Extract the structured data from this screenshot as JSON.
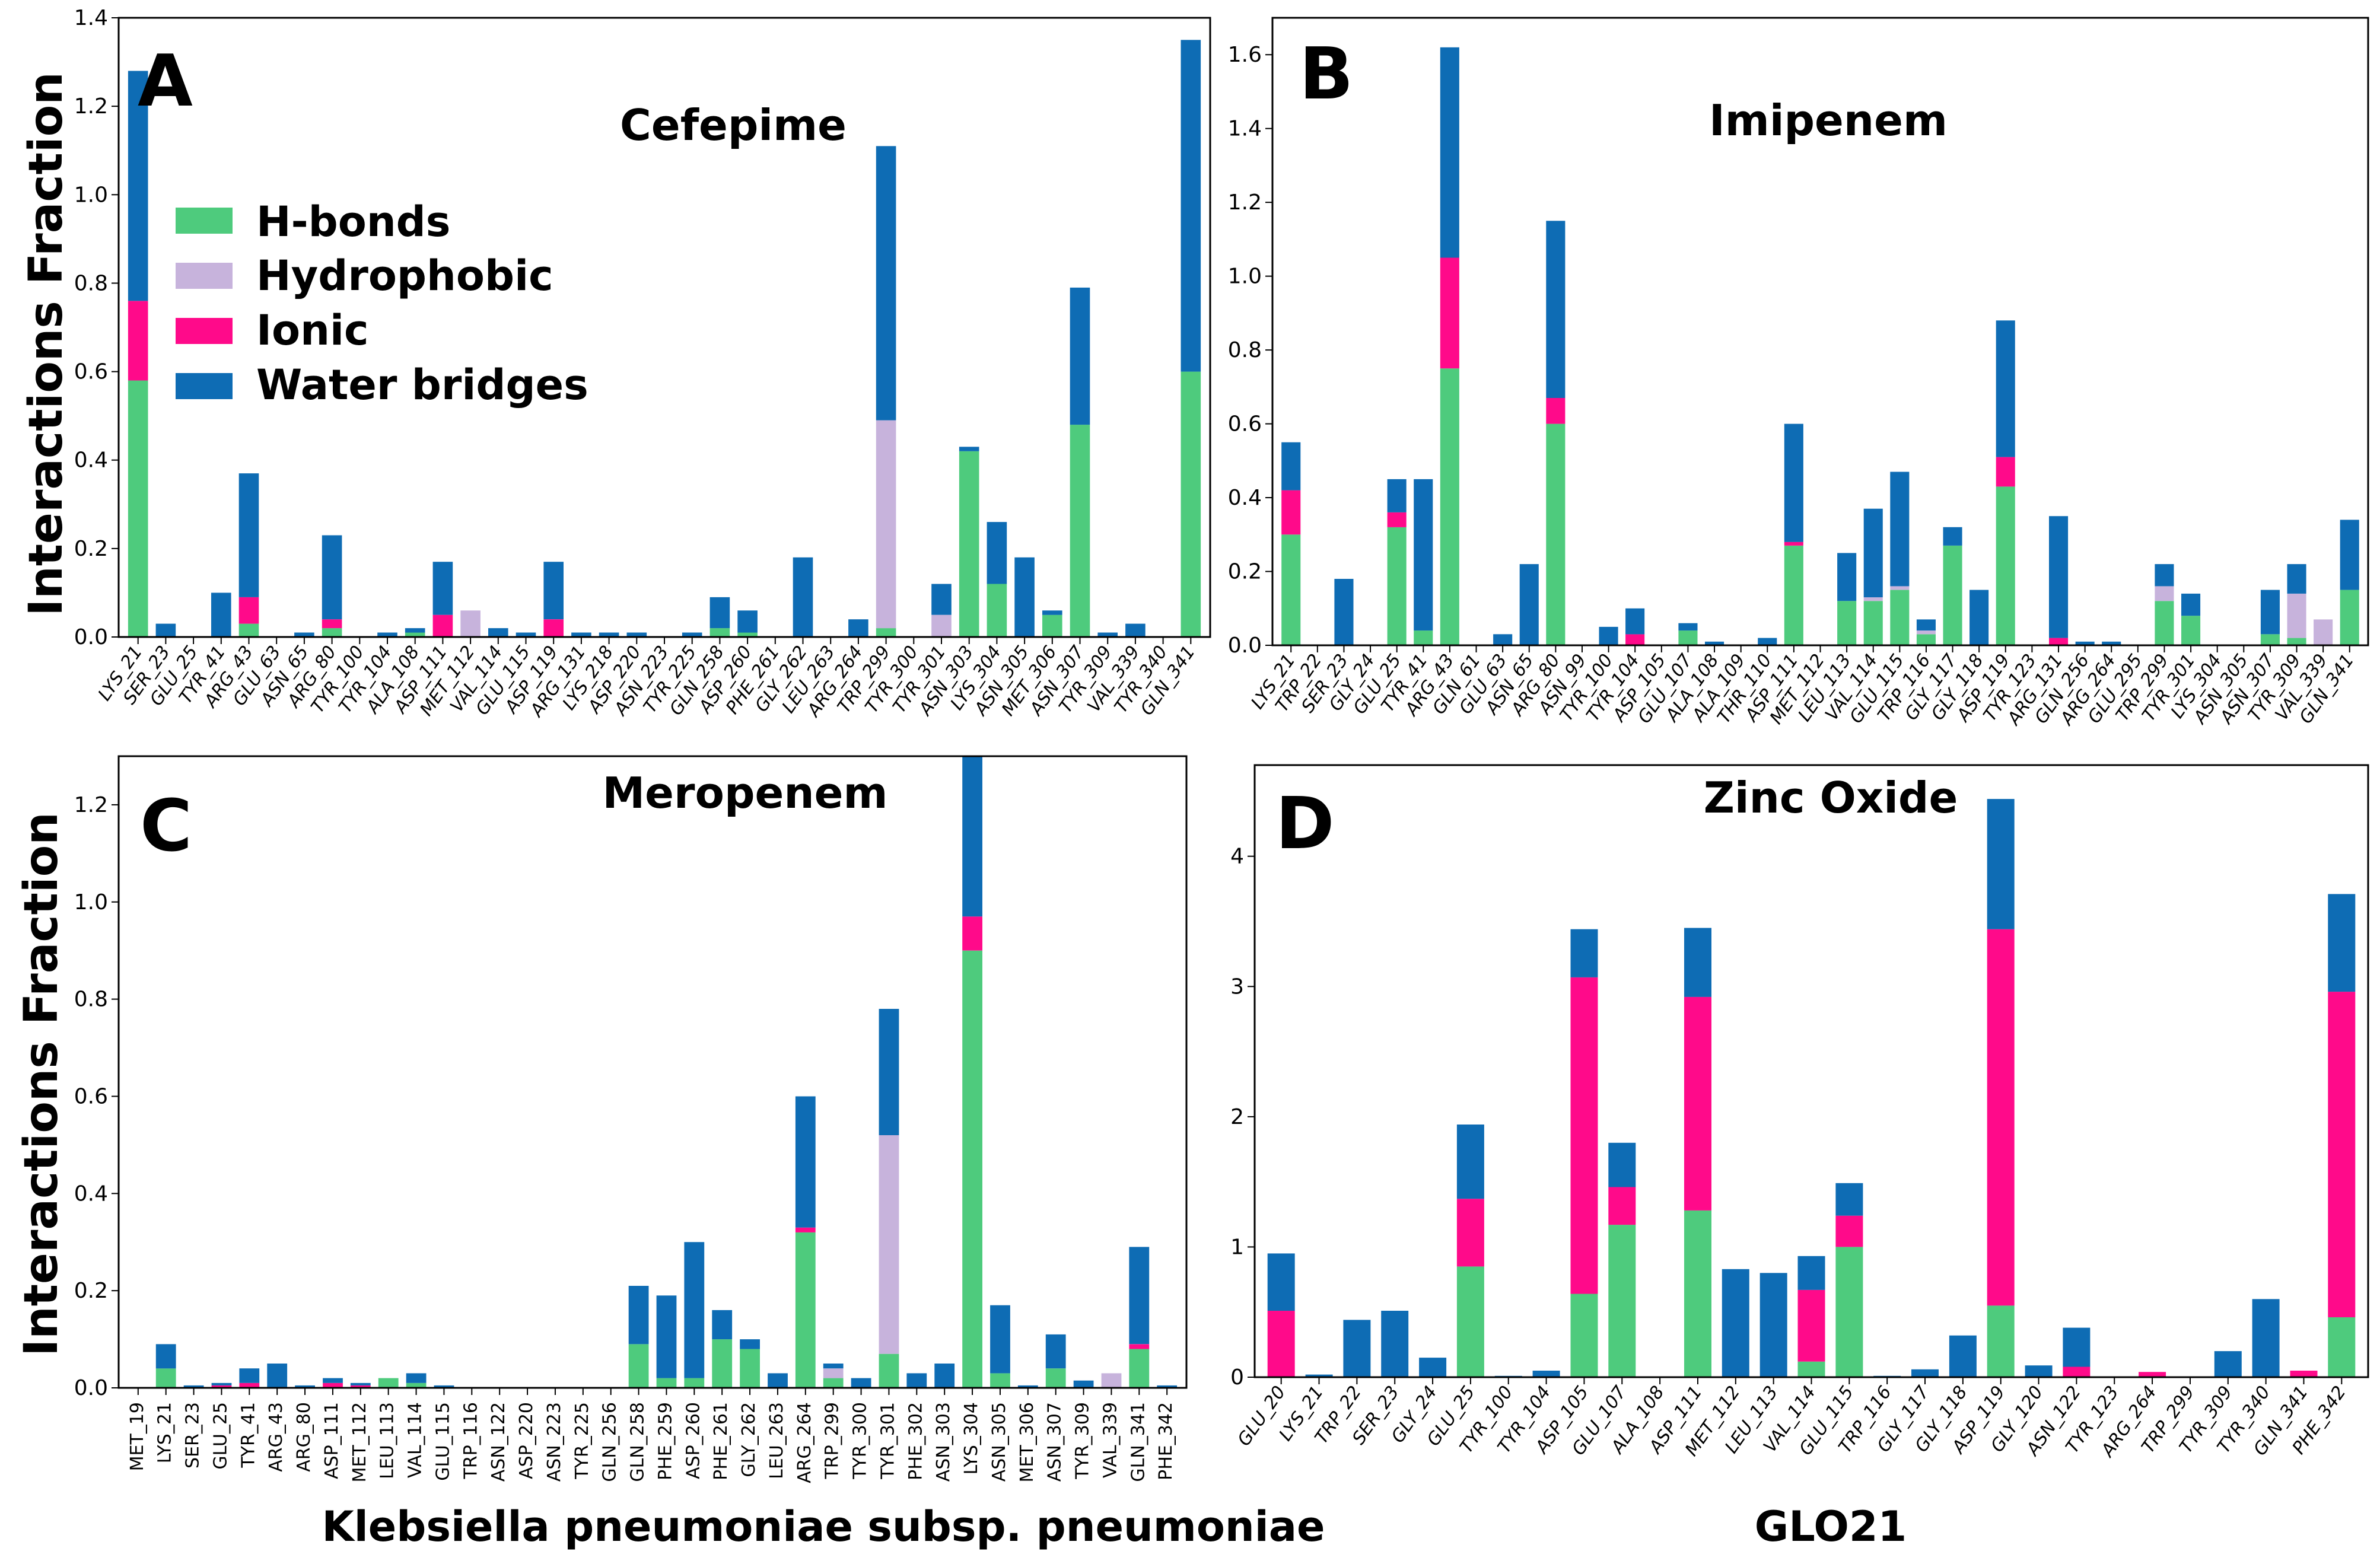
{
  "colors": {
    "hbonds": "#4ecb7d",
    "hydrophobic": "#c7b3dc",
    "ionic": "#ff0a8a",
    "water": "#0e6cb4"
  },
  "legend": [
    "H-bonds",
    "Hydrophobic",
    "Ionic",
    "Water bridges"
  ],
  "chart_data": [
    {
      "type": "bar",
      "panel": "A",
      "title": "Cefepime",
      "ylabel": "Interactions Fraction",
      "xlabel": "",
      "ylim": [
        0,
        1.4
      ],
      "yticks": [
        0.0,
        0.2,
        0.4,
        0.6,
        0.8,
        1.0,
        1.2,
        1.4
      ],
      "categories": [
        "LYS_21",
        "SER_23",
        "GLU_25",
        "TYR_41",
        "ARG_43",
        "GLU_63",
        "ASN_65",
        "ARG_80",
        "TYR_100",
        "TYR_104",
        "ALA_108",
        "ASP_111",
        "MET_112",
        "VAL_114",
        "GLU_115",
        "ASP_119",
        "ARG_131",
        "LYS_218",
        "ASP_220",
        "ASN_223",
        "TYR_225",
        "GLN_258",
        "ASP_260",
        "PHE_261",
        "GLY_262",
        "LEU_263",
        "ARG_264",
        "TRP_299",
        "TYR_300",
        "TYR_301",
        "ASN_303",
        "LYS_304",
        "ASN_305",
        "MET_306",
        "ASN_307",
        "TYR_309",
        "VAL_339",
        "TYR_340",
        "GLN_341"
      ],
      "series": [
        {
          "name": "H-bonds",
          "values": [
            0.58,
            0,
            0,
            0,
            0.03,
            0,
            0,
            0.02,
            0,
            0,
            0.01,
            0,
            0,
            0,
            0,
            0,
            0,
            0,
            0,
            0,
            0,
            0.02,
            0.01,
            0,
            0,
            0,
            0,
            0.02,
            0,
            0,
            0.42,
            0.12,
            0,
            0.05,
            0.48,
            0,
            0,
            0,
            0.6
          ]
        },
        {
          "name": "Hydrophobic",
          "values": [
            0,
            0,
            0,
            0,
            0,
            0,
            0,
            0,
            0,
            0,
            0,
            0,
            0.06,
            0,
            0,
            0,
            0,
            0,
            0,
            0,
            0,
            0,
            0,
            0,
            0,
            0,
            0,
            0.47,
            0,
            0.05,
            0,
            0,
            0,
            0,
            0,
            0,
            0,
            0,
            0
          ]
        },
        {
          "name": "Ionic",
          "values": [
            0.18,
            0,
            0,
            0,
            0.06,
            0,
            0,
            0.02,
            0,
            0,
            0,
            0.05,
            0,
            0,
            0,
            0.04,
            0,
            0,
            0,
            0,
            0,
            0,
            0,
            0,
            0,
            0,
            0,
            0,
            0,
            0,
            0,
            0,
            0,
            0,
            0,
            0,
            0,
            0,
            0
          ]
        },
        {
          "name": "Water bridges",
          "values": [
            0.52,
            0.03,
            0,
            0.1,
            0.28,
            0,
            0.01,
            0.19,
            0,
            0.01,
            0.01,
            0.12,
            0,
            0.02,
            0.01,
            0.13,
            0.01,
            0.01,
            0.01,
            0,
            0.01,
            0.07,
            0.05,
            0,
            0.18,
            0,
            0.04,
            0.62,
            0,
            0.07,
            0.01,
            0.14,
            0.18,
            0.01,
            0.31,
            0.01,
            0.03,
            0,
            0.75
          ]
        }
      ]
    },
    {
      "type": "bar",
      "panel": "B",
      "title": "Imipenem",
      "ylabel": "",
      "xlabel": "",
      "ylim": [
        0,
        1.7
      ],
      "yticks": [
        0.0,
        0.2,
        0.4,
        0.6,
        0.8,
        1.0,
        1.2,
        1.4,
        1.6
      ],
      "categories": [
        "LYS_21",
        "TRP_22",
        "SER_23",
        "GLY_24",
        "GLU_25",
        "TYR_41",
        "ARG_43",
        "GLN_61",
        "GLU_63",
        "ASN_65",
        "ARG_80",
        "ASN_99",
        "TYR_100",
        "TYR_104",
        "ASP_105",
        "GLU_107",
        "ALA_108",
        "ALA_109",
        "THR_110",
        "ASP_111",
        "MET_112",
        "LEU_113",
        "VAL_114",
        "GLU_115",
        "TRP_116",
        "GLY_117",
        "GLY_118",
        "ASP_119",
        "TYR_123",
        "ARG_131",
        "GLN_256",
        "ARG_264",
        "GLU_295",
        "TRP_299",
        "TYR_301",
        "LYS_304",
        "ASN_305",
        "ASN_307",
        "TYR_309",
        "VAL_339",
        "GLN_341"
      ],
      "series": [
        {
          "name": "H-bonds",
          "values": [
            0.3,
            0,
            0,
            0,
            0.32,
            0.04,
            0.75,
            0,
            0,
            0,
            0.6,
            0,
            0,
            0,
            0,
            0.04,
            0,
            0,
            0,
            0.27,
            0,
            0.12,
            0.12,
            0.15,
            0.03,
            0.27,
            0,
            0.43,
            0,
            0,
            0,
            0,
            0,
            0.12,
            0.08,
            0,
            0,
            0.03,
            0.02,
            0,
            0.15
          ]
        },
        {
          "name": "Hydrophobic",
          "values": [
            0,
            0,
            0,
            0,
            0,
            0,
            0,
            0,
            0,
            0,
            0,
            0,
            0,
            0,
            0,
            0,
            0,
            0,
            0,
            0,
            0,
            0,
            0.01,
            0.01,
            0.01,
            0,
            0,
            0,
            0,
            0,
            0,
            0,
            0,
            0.04,
            0,
            0,
            0,
            0,
            0.12,
            0.07,
            0
          ]
        },
        {
          "name": "Ionic",
          "values": [
            0.12,
            0,
            0,
            0,
            0.04,
            0,
            0.3,
            0,
            0,
            0,
            0.07,
            0,
            0,
            0.03,
            0,
            0,
            0,
            0,
            0,
            0.01,
            0,
            0,
            0,
            0,
            0,
            0,
            0,
            0.08,
            0,
            0.02,
            0,
            0,
            0,
            0,
            0,
            0,
            0,
            0,
            0,
            0,
            0
          ]
        },
        {
          "name": "Water bridges",
          "values": [
            0.13,
            0,
            0.18,
            0,
            0.09,
            0.41,
            0.57,
            0,
            0.03,
            0.22,
            0.48,
            0,
            0.05,
            0.07,
            0,
            0.02,
            0.01,
            0,
            0.02,
            0.32,
            0,
            0.13,
            0.24,
            0.31,
            0.03,
            0.05,
            0.15,
            0.37,
            0,
            0.33,
            0.01,
            0.01,
            0,
            0.06,
            0.06,
            0,
            0,
            0.12,
            0.08,
            0,
            0.19
          ]
        }
      ]
    },
    {
      "type": "bar",
      "panel": "C",
      "title": "Meropenem",
      "ylabel": "Interactions Fraction",
      "xlabel": "Klebsiella pneumoniae subsp. pneumoniae",
      "ylim": [
        0,
        1.3
      ],
      "yticks": [
        0.0,
        0.2,
        0.4,
        0.6,
        0.8,
        1.0,
        1.2
      ],
      "categories": [
        "MET_19",
        "LYS_21",
        "SER_23",
        "GLU_25",
        "TYR_41",
        "ARG_43",
        "ARG_80",
        "ASP_111",
        "MET_112",
        "LEU_113",
        "VAL_114",
        "GLU_115",
        "TRP_116",
        "ASN_122",
        "ASP_220",
        "ASN_223",
        "TYR_225",
        "GLN_256",
        "GLN_258",
        "PHE_259",
        "ASP_260",
        "PHE_261",
        "GLY_262",
        "LEU_263",
        "ARG_264",
        "TRP_299",
        "TYR_300",
        "TYR_301",
        "PHE_302",
        "ASN_303",
        "LYS_304",
        "ASN_305",
        "MET_306",
        "ASN_307",
        "TYR_309",
        "VAL_339",
        "GLN_341",
        "PHE_342"
      ],
      "series": [
        {
          "name": "H-bonds",
          "values": [
            0,
            0.04,
            0,
            0,
            0,
            0,
            0,
            0,
            0,
            0.02,
            0.01,
            0,
            0,
            0,
            0,
            0,
            0,
            0,
            0.09,
            0.02,
            0.02,
            0.1,
            0.08,
            0,
            0.32,
            0.02,
            0,
            0.07,
            0,
            0,
            0.9,
            0.03,
            0,
            0.04,
            0,
            0,
            0.08,
            0
          ]
        },
        {
          "name": "Hydrophobic",
          "values": [
            0,
            0,
            0,
            0,
            0,
            0,
            0,
            0,
            0,
            0,
            0,
            0,
            0,
            0,
            0,
            0,
            0,
            0,
            0,
            0,
            0,
            0,
            0,
            0,
            0,
            0.02,
            0,
            0.45,
            0,
            0,
            0,
            0,
            0,
            0,
            0,
            0.03,
            0,
            0
          ]
        },
        {
          "name": "Ionic",
          "values": [
            0,
            0,
            0,
            0.005,
            0.01,
            0,
            0,
            0.01,
            0.005,
            0,
            0,
            0,
            0,
            0,
            0,
            0,
            0,
            0,
            0,
            0,
            0,
            0,
            0,
            0,
            0.01,
            0,
            0,
            0,
            0,
            0,
            0.07,
            0,
            0,
            0,
            0,
            0,
            0.01,
            0
          ]
        },
        {
          "name": "Water bridges",
          "values": [
            0,
            0.05,
            0.005,
            0.005,
            0.03,
            0.05,
            0.005,
            0.01,
            0.005,
            0,
            0.02,
            0.005,
            0,
            0,
            0,
            0,
            0,
            0,
            0.12,
            0.17,
            0.28,
            0.06,
            0.02,
            0.03,
            0.27,
            0.01,
            0.02,
            0.26,
            0.03,
            0.05,
            0.33,
            0.14,
            0.005,
            0.07,
            0.015,
            0,
            0.2,
            0.005
          ]
        }
      ]
    },
    {
      "type": "bar",
      "panel": "D",
      "title": "Zinc Oxide",
      "ylabel": "",
      "xlabel": "GLO21",
      "ylim": [
        0,
        4.7
      ],
      "yticks": [
        0,
        1,
        2,
        3,
        4
      ],
      "categories": [
        "GLU_20",
        "LYS_21",
        "TRP_22",
        "SER_23",
        "GLY_24",
        "GLU_25",
        "TYR_100",
        "TYR_104",
        "ASP_105",
        "GLU_107",
        "ALA_108",
        "ASP_111",
        "MET_112",
        "LEU_113",
        "VAL_114",
        "GLU_115",
        "TRP_116",
        "GLY_117",
        "GLY_118",
        "ASP_119",
        "GLY_120",
        "ASN_122",
        "TYR_123",
        "ARG_264",
        "TRP_299",
        "TYR_309",
        "TYR_340",
        "GLN_341",
        "PHE_342"
      ],
      "series": [
        {
          "name": "H-bonds",
          "values": [
            0,
            0,
            0,
            0,
            0,
            0.85,
            0,
            0,
            0.64,
            1.17,
            0,
            1.28,
            0,
            0,
            0.12,
            1.0,
            0,
            0,
            0,
            0.55,
            0,
            0,
            0,
            0,
            0,
            0,
            0,
            0,
            0.46
          ]
        },
        {
          "name": "Hydrophobic",
          "values": [
            0,
            0,
            0,
            0,
            0,
            0,
            0,
            0,
            0,
            0,
            0,
            0,
            0,
            0,
            0,
            0,
            0,
            0,
            0,
            0,
            0,
            0,
            0,
            0,
            0,
            0,
            0,
            0,
            0
          ]
        },
        {
          "name": "Ionic",
          "values": [
            0.51,
            0,
            0,
            0,
            0,
            0.52,
            0,
            0,
            2.43,
            0.29,
            0,
            1.64,
            0,
            0,
            0.55,
            0.24,
            0,
            0,
            0,
            2.89,
            0,
            0.08,
            0,
            0.04,
            0,
            0,
            0,
            0.05,
            2.5
          ]
        },
        {
          "name": "Water bridges",
          "values": [
            0.44,
            0.02,
            0.44,
            0.51,
            0.15,
            0.57,
            0.01,
            0.05,
            0.37,
            0.34,
            0,
            0.53,
            0.83,
            0.8,
            0.26,
            0.25,
            0.01,
            0.06,
            0.32,
            1.0,
            0.09,
            0.3,
            0,
            0,
            0,
            0.2,
            0.6,
            0,
            0.75
          ]
        }
      ]
    }
  ]
}
